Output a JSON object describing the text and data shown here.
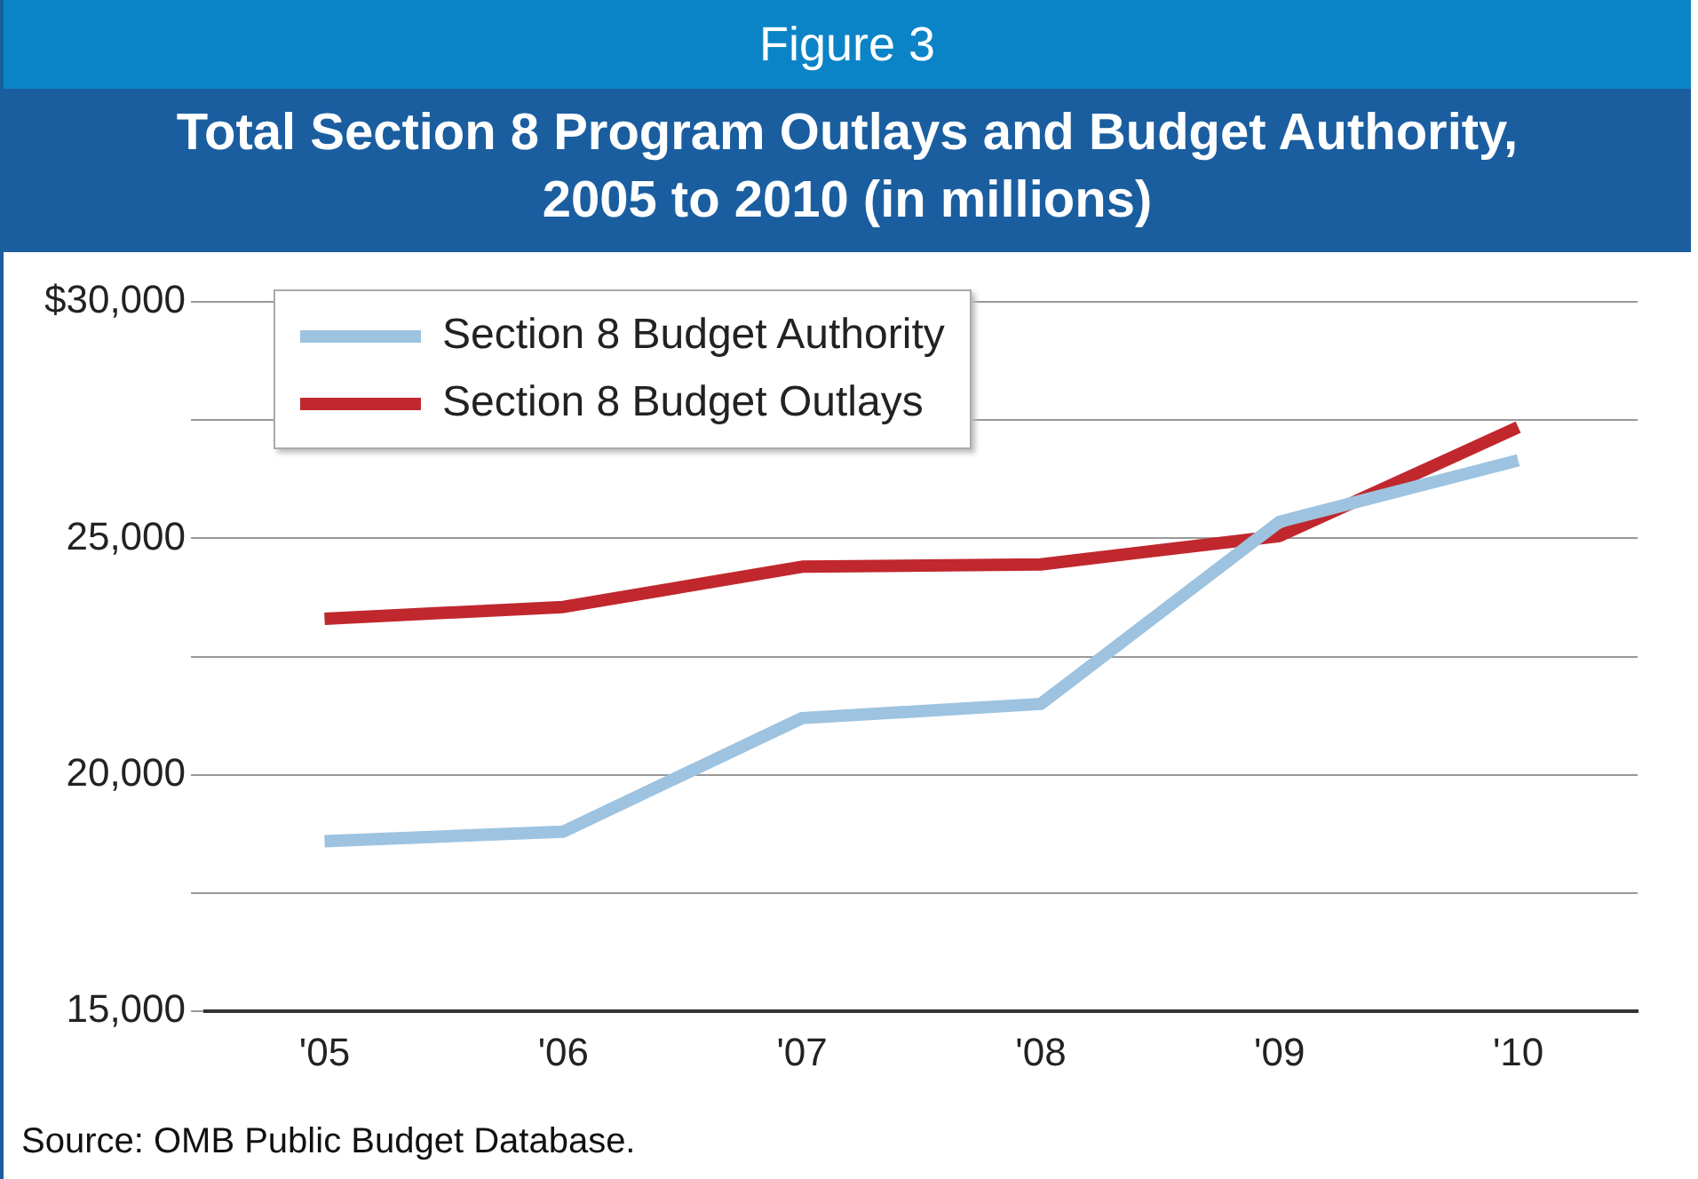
{
  "chart_data": {
    "type": "line",
    "subtitle": "Figure 3",
    "title": "Total Section 8 Program Outlays and Budget Authority, 2005 to 2010 (in millions)",
    "categories": [
      "'05",
      "'06",
      "'07",
      "'08",
      "'09",
      "'10"
    ],
    "series": [
      {
        "name": "Section 8 Budget Authority",
        "color": "#9dc3e0",
        "values": [
          18600,
          18800,
          21200,
          21500,
          25350,
          26650
        ]
      },
      {
        "name": "Section 8 Budget Outlays",
        "color": "#c0282e",
        "values": [
          23300,
          23550,
          24400,
          24450,
          25050,
          27350
        ]
      }
    ],
    "ylim": [
      15000,
      30000
    ],
    "yticks": [
      {
        "value": 15000,
        "label": "15,000"
      },
      {
        "value": 17500,
        "label": null
      },
      {
        "value": 20000,
        "label": "20,000"
      },
      {
        "value": 22500,
        "label": null
      },
      {
        "value": 25000,
        "label": "25,000"
      },
      {
        "value": 27500,
        "label": null
      },
      {
        "value": 30000,
        "label": "$30,000"
      }
    ],
    "grid": "y",
    "legend": "top left",
    "marker": "none",
    "line_style": "solid",
    "annotations": [
      "Source: OMB Public Budget Database."
    ]
  }
}
